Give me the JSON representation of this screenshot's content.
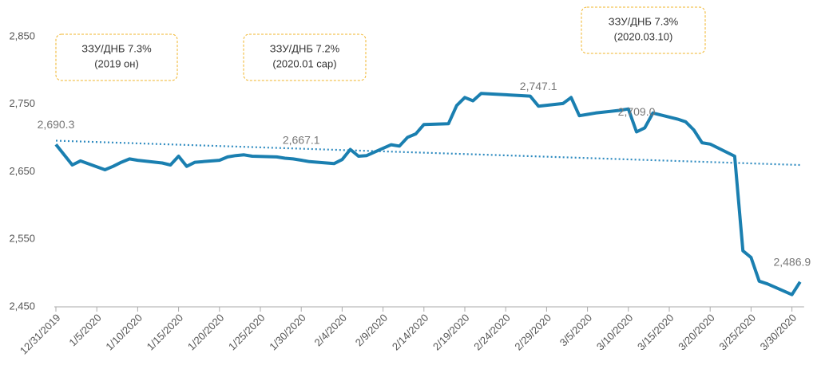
{
  "chart_data": {
    "type": "line",
    "x": [
      "12/31/2019",
      "1/2/2020",
      "1/3/2020",
      "1/6/2020",
      "1/7/2020",
      "1/8/2020",
      "1/9/2020",
      "1/10/2020",
      "1/13/2020",
      "1/14/2020",
      "1/15/2020",
      "1/16/2020",
      "1/17/2020",
      "1/20/2020",
      "1/21/2020",
      "1/22/2020",
      "1/23/2020",
      "1/24/2020",
      "1/27/2020",
      "1/28/2020",
      "1/29/2020",
      "1/30/2020",
      "1/31/2020",
      "2/3/2020",
      "2/4/2020",
      "2/5/2020",
      "2/6/2020",
      "2/7/2020",
      "2/10/2020",
      "2/11/2020",
      "2/12/2020",
      "2/13/2020",
      "2/14/2020",
      "2/17/2020",
      "2/18/2020",
      "2/19/2020",
      "2/20/2020",
      "2/21/2020",
      "2/27/2020",
      "2/28/2020",
      "3/2/2020",
      "3/3/2020",
      "3/4/2020",
      "3/5/2020",
      "3/6/2020",
      "3/9/2020",
      "3/10/2020",
      "3/11/2020",
      "3/12/2020",
      "3/13/2020",
      "3/16/2020",
      "3/17/2020",
      "3/18/2020",
      "3/19/2020",
      "3/20/2020",
      "3/23/2020",
      "3/24/2020",
      "3/25/2020",
      "3/26/2020",
      "3/27/2020",
      "3/30/2020",
      "3/31/2020"
    ],
    "series": [
      {
        "color": "#1a7fb0",
        "values": [
          2690.3,
          2660,
          2666,
          2653,
          2658,
          2664,
          2669,
          2667,
          2663,
          2660,
          2673,
          2658,
          2664,
          2667,
          2672,
          2674,
          2675,
          2673,
          2672,
          2670,
          2669,
          2667.1,
          2665,
          2662,
          2668,
          2683,
          2673,
          2674,
          2690,
          2688,
          2701,
          2706,
          2720,
          2721,
          2748,
          2760,
          2755,
          2766,
          2762,
          2747.1,
          2751,
          2760,
          2733,
          2735,
          2737,
          2741,
          2743,
          2709.0,
          2715,
          2737,
          2728,
          2724,
          2712,
          2693,
          2691,
          2673,
          2533,
          2523,
          2488,
          2484,
          2468,
          2486.9
        ],
        "value_labels": [
          "2,690.3",
          null,
          null,
          null,
          null,
          null,
          null,
          null,
          null,
          null,
          null,
          null,
          null,
          null,
          null,
          null,
          null,
          null,
          null,
          null,
          null,
          "2,667.1",
          null,
          null,
          null,
          null,
          null,
          null,
          null,
          null,
          null,
          null,
          null,
          null,
          null,
          null,
          null,
          null,
          null,
          "2,747.1",
          null,
          null,
          null,
          null,
          null,
          null,
          null,
          "2,709.0",
          null,
          null,
          null,
          null,
          null,
          null,
          null,
          null,
          null,
          null,
          null,
          null,
          null,
          "2,486.9"
        ]
      }
    ],
    "trend": {
      "color": "#2e8bc0",
      "values": [
        2696,
        2660
      ]
    },
    "ylim": [
      2450,
      2850
    ],
    "yticks": [
      {
        "value": 2450,
        "label": "2,450"
      },
      {
        "value": 2550,
        "label": "2,550"
      },
      {
        "value": 2650,
        "label": "2,650"
      },
      {
        "value": 2750,
        "label": "2,750"
      },
      {
        "value": 2850,
        "label": "2,850"
      }
    ],
    "xticks": [
      "12/31/2019",
      "1/5/2020",
      "1/10/2020",
      "1/15/2020",
      "1/20/2020",
      "1/25/2020",
      "1/30/2020",
      "2/4/2020",
      "2/9/2020",
      "2/14/2020",
      "2/19/2020",
      "2/24/2020",
      "2/29/2020",
      "3/5/2020",
      "3/10/2020",
      "3/15/2020",
      "3/20/2020",
      "3/25/2020",
      "3/30/2020"
    ],
    "annotations": [
      {
        "lines": [
          "ЗЗУ/ДНБ 7.3%",
          "(2019 он)"
        ]
      },
      {
        "lines": [
          "ЗЗУ/ДНБ 7.2%",
          "(2020.01 сар)"
        ]
      },
      {
        "lines": [
          "ЗЗУ/ДНБ 7.3%",
          "(2020.03.10)"
        ]
      }
    ],
    "grid": false
  }
}
